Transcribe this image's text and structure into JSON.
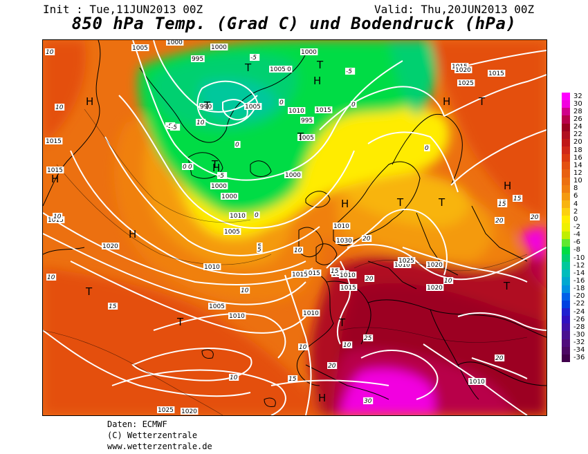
{
  "header": {
    "init": "Init : Tue,11JUN2013 00Z",
    "valid": "Valid: Thu,20JUN2013 00Z",
    "title": "850 hPa Temp. (Grad C) und Bodendruck (hPa)"
  },
  "footer": {
    "line1": "Daten: ECMWF",
    "line2": "(C) Wetterzentrale",
    "line3": "www.wetterzentrale.de"
  },
  "legend": {
    "labels": [
      "32",
      "30",
      "28",
      "26",
      "24",
      "22",
      "20",
      "18",
      "16",
      "14",
      "12",
      "10",
      "8",
      "6",
      "4",
      "2",
      "0",
      "-2",
      "-4",
      "-6",
      "-8",
      "-10",
      "-12",
      "-14",
      "-16",
      "-18",
      "-20",
      "-22",
      "-24",
      "-26",
      "-28",
      "-30",
      "-32",
      "-34",
      "-36"
    ],
    "colors": [
      "#ff00ff",
      "#f200e0",
      "#d0008a",
      "#b8004a",
      "#9c0020",
      "#b01020",
      "#c01818",
      "#d02818",
      "#dc3a10",
      "#e45010",
      "#e86010",
      "#ec7010",
      "#f08010",
      "#f49a10",
      "#f8b410",
      "#fcd010",
      "#ffec00",
      "#eef000",
      "#c0ee00",
      "#60e830",
      "#00dc44",
      "#00d070",
      "#00c89c",
      "#00bcbc",
      "#00a8d0",
      "#0090e0",
      "#0060e8",
      "#0040e0",
      "#2020d0",
      "#3010c0",
      "#4010a8",
      "#481090",
      "#500c7c",
      "#4c0864",
      "#40004c"
    ]
  },
  "map": {
    "pressure_labels": [
      "1005",
      "1000",
      "995",
      "1000",
      "1000",
      "1000",
      "1005",
      "1010",
      "1015",
      "990",
      "1005",
      "995",
      "1000",
      "1005",
      "1000",
      "1000",
      "1005",
      "1010",
      "1010",
      "1015",
      "1015",
      "1020",
      "1015",
      "1010",
      "1010",
      "1005",
      "1015",
      "1015",
      "1010",
      "1020",
      "1025",
      "1025",
      "1020",
      "1015",
      "1010",
      "1010",
      "1010",
      "1015",
      "1020",
      "1015",
      "1025",
      "1030",
      "1020",
      "1010"
    ],
    "temp_labels": [
      "10",
      "10",
      "10",
      "10",
      "-5",
      "-5",
      "-5",
      "-5",
      "0",
      "0",
      "0",
      "0",
      "0",
      "0",
      "0",
      "5",
      "-5",
      "5",
      "10",
      "10",
      "15",
      "15",
      "10",
      "10",
      "20",
      "20",
      "20",
      "25",
      "30",
      "15",
      "10",
      "15",
      "20",
      "20",
      "10",
      "15",
      "20",
      "10",
      "15"
    ],
    "pressure_centers": [
      "T",
      "T",
      "H",
      "H",
      "H",
      "T",
      "T",
      "T",
      "H",
      "H",
      "T",
      "T",
      "H",
      "H",
      "T",
      "H",
      "T",
      "T",
      "T",
      "T",
      "H"
    ]
  }
}
